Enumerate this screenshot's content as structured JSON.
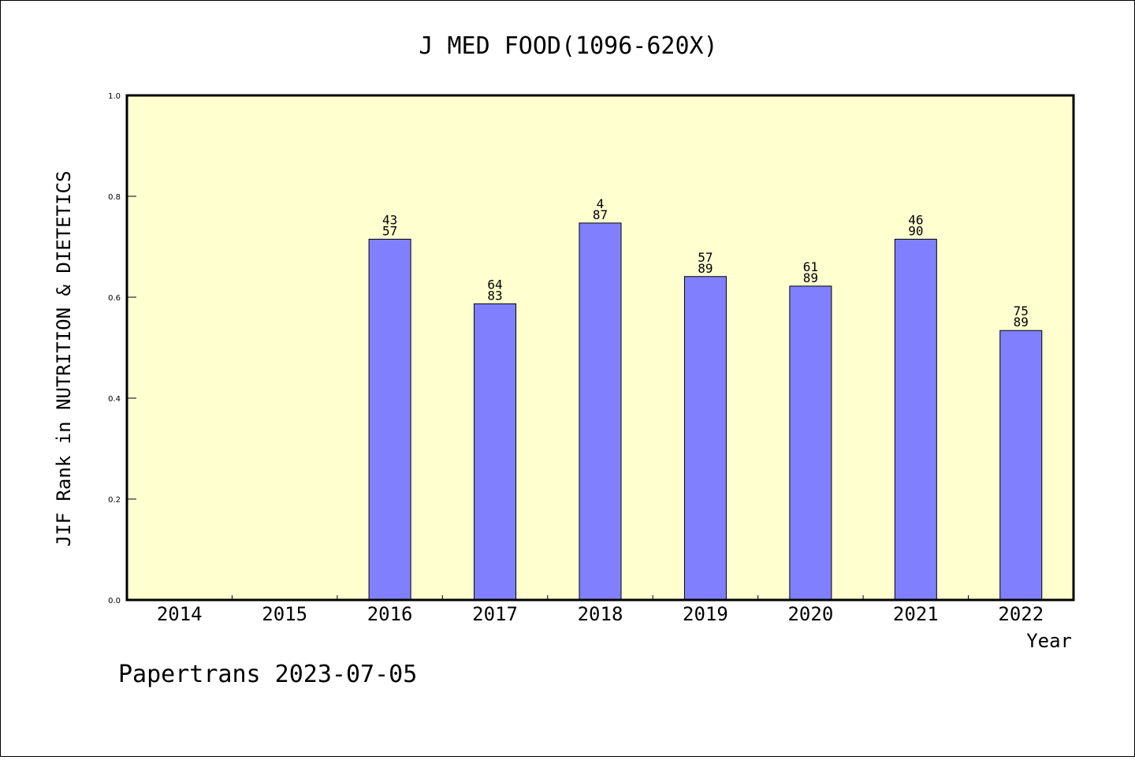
{
  "chart_data": {
    "type": "bar",
    "title": "J MED FOOD(1096-620X)",
    "ylabel": "JIF Rank in NUTRITION & DIETETICS",
    "xlabel": "Year",
    "categories": [
      "2014",
      "2015",
      "2016",
      "2017",
      "2018",
      "2019",
      "2020",
      "2021",
      "2022"
    ],
    "rank": [
      null,
      null,
      "43",
      "64",
      "4",
      "57",
      "61",
      "46",
      "75"
    ],
    "total": [
      null,
      null,
      "57",
      "83",
      "87",
      "89",
      "89",
      "90",
      "89"
    ],
    "values": [
      null,
      null,
      0.715,
      0.587,
      0.747,
      0.641,
      0.622,
      0.715,
      0.534
    ],
    "ylim": [
      0.0,
      1.0
    ],
    "yticks": [
      "0.0",
      "0.2",
      "0.4",
      "0.6",
      "0.8",
      "1.0"
    ],
    "grid": false,
    "bar_color": "#8080ff",
    "plot_background": "#ffffd0"
  },
  "footer": "Papertrans 2023-07-05"
}
